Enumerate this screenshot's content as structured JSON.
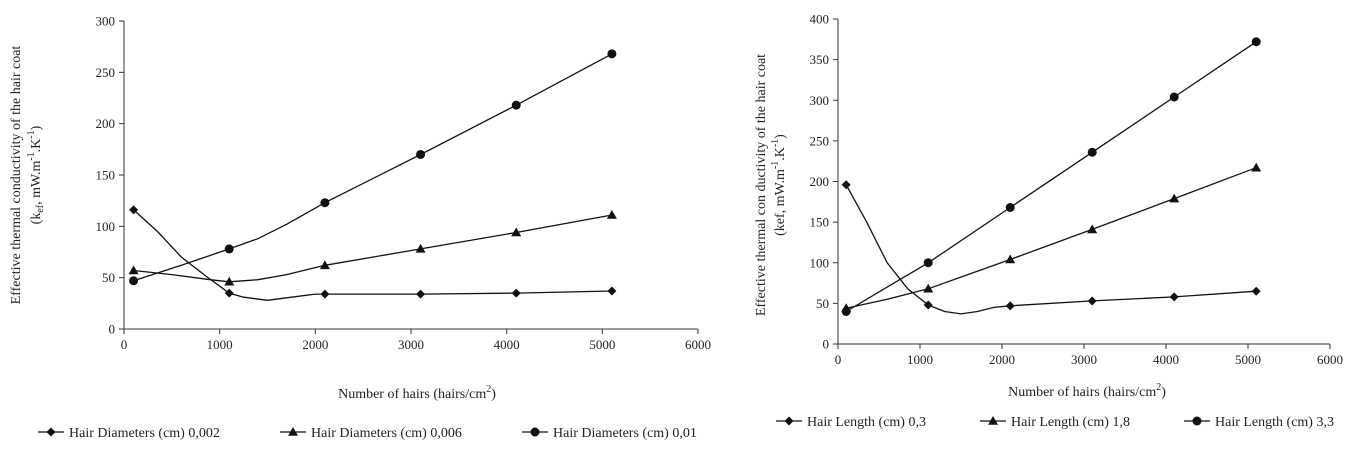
{
  "chart_data": [
    {
      "type": "line",
      "title": "",
      "xlabel": "Number of hairs (hairs/cm",
      "xlabel_sup": "2",
      "xlabel_end": ")",
      "ylabel_line1": "Effective thermal conductivity of the hair coat",
      "ylabel_line2_pre": "(k",
      "ylabel_line2_sub": "ef",
      "ylabel_line2_mid": ", mW.m",
      "ylabel_line2_sup1": "-1",
      "ylabel_line2_mid2": ".K",
      "ylabel_line2_sup2": "-1",
      "ylabel_line2_end": ")",
      "xlim": [
        0,
        6000
      ],
      "ylim": [
        0,
        300
      ],
      "xticks": [
        "0",
        "1000",
        "2000",
        "3000",
        "4000",
        "5000",
        "6000"
      ],
      "yticks": [
        "0",
        "50",
        "100",
        "150",
        "200",
        "250",
        "300"
      ],
      "legend_position": "bottom",
      "series": [
        {
          "name": "Hair Diameters (cm) 0,002",
          "marker": "diamond",
          "markers": [
            [
              100,
              116
            ],
            [
              1100,
              35
            ],
            [
              2100,
              34
            ],
            [
              3100,
              34
            ],
            [
              4100,
              35
            ],
            [
              5100,
              37
            ]
          ],
          "curve": [
            [
              100,
              116
            ],
            [
              350,
              95
            ],
            [
              600,
              70
            ],
            [
              850,
              52
            ],
            [
              1100,
              35
            ],
            [
              1250,
              31
            ],
            [
              1500,
              28
            ],
            [
              1750,
              31
            ],
            [
              2000,
              34
            ],
            [
              2100,
              34
            ],
            [
              3100,
              34
            ],
            [
              4100,
              35
            ],
            [
              5100,
              37
            ]
          ]
        },
        {
          "name": "Hair Diameters (cm) 0,006",
          "marker": "triangle",
          "markers": [
            [
              100,
              57
            ],
            [
              1100,
              46
            ],
            [
              2100,
              62
            ],
            [
              3100,
              78
            ],
            [
              4100,
              94
            ],
            [
              5100,
              111
            ]
          ],
          "curve": [
            [
              100,
              57
            ],
            [
              500,
              53
            ],
            [
              900,
              48
            ],
            [
              1100,
              46
            ],
            [
              1400,
              48
            ],
            [
              1700,
              53
            ],
            [
              2100,
              62
            ],
            [
              2600,
              70
            ],
            [
              3100,
              78
            ],
            [
              4100,
              94
            ],
            [
              5100,
              111
            ]
          ]
        },
        {
          "name": "Hair Diameters (cm) 0,01",
          "marker": "circle",
          "markers": [
            [
              100,
              47
            ],
            [
              1100,
              78
            ],
            [
              2100,
              123
            ],
            [
              3100,
              170
            ],
            [
              4100,
              218
            ],
            [
              5100,
              268
            ]
          ],
          "curve": [
            [
              100,
              47
            ],
            [
              600,
              62
            ],
            [
              1100,
              78
            ],
            [
              1400,
              88
            ],
            [
              1700,
              102
            ],
            [
              2100,
              123
            ],
            [
              3100,
              170
            ],
            [
              4100,
              218
            ],
            [
              5100,
              268
            ]
          ]
        }
      ]
    },
    {
      "type": "line",
      "title": "",
      "xlabel": "Number of hairs (hairs/cm",
      "xlabel_sup": "2",
      "xlabel_end": ")",
      "ylabel_line1": "Effective thermal con ductivity of the hair coat",
      "ylabel_line2_pre": "(kef, mW.m",
      "ylabel_line2_sub": "",
      "ylabel_line2_mid": "",
      "ylabel_line2_sup1": "-1",
      "ylabel_line2_mid2": ".K",
      "ylabel_line2_sup2": "-1",
      "ylabel_line2_end": ")",
      "xlim": [
        0,
        6000
      ],
      "ylim": [
        0,
        400
      ],
      "xticks": [
        "0",
        "1000",
        "2000",
        "3000",
        "4000",
        "5000",
        "6000"
      ],
      "yticks": [
        "0",
        "50",
        "100",
        "150",
        "200",
        "250",
        "300",
        "350",
        "400"
      ],
      "legend_position": "bottom",
      "series": [
        {
          "name": "Hair Length (cm) 0,3",
          "marker": "diamond",
          "markers": [
            [
              100,
              196
            ],
            [
              1100,
              48
            ],
            [
              2100,
              47
            ],
            [
              3100,
              53
            ],
            [
              4100,
              58
            ],
            [
              5100,
              65
            ]
          ],
          "curve": [
            [
              100,
              196
            ],
            [
              350,
              150
            ],
            [
              600,
              100
            ],
            [
              850,
              68
            ],
            [
              1100,
              48
            ],
            [
              1300,
              40
            ],
            [
              1500,
              37
            ],
            [
              1700,
              40
            ],
            [
              1900,
              45
            ],
            [
              2100,
              47
            ],
            [
              3100,
              53
            ],
            [
              4100,
              58
            ],
            [
              5100,
              65
            ]
          ]
        },
        {
          "name": "Hair Length (cm) 1,8",
          "marker": "triangle",
          "markers": [
            [
              100,
              44
            ],
            [
              1100,
              68
            ],
            [
              2100,
              104
            ],
            [
              3100,
              141
            ],
            [
              4100,
              179
            ],
            [
              5100,
              217
            ]
          ],
          "curve": [
            [
              100,
              44
            ],
            [
              600,
              55
            ],
            [
              1100,
              68
            ],
            [
              1600,
              86
            ],
            [
              2100,
              104
            ],
            [
              3100,
              141
            ],
            [
              4100,
              179
            ],
            [
              5100,
              217
            ]
          ]
        },
        {
          "name": "Hair Length (cm) 3,3",
          "marker": "circle",
          "markers": [
            [
              100,
              40
            ],
            [
              1100,
              100
            ],
            [
              2100,
              168
            ],
            [
              3100,
              236
            ],
            [
              4100,
              304
            ],
            [
              5100,
              372
            ]
          ],
          "curve": [
            [
              100,
              40
            ],
            [
              600,
              70
            ],
            [
              1100,
              100
            ],
            [
              2100,
              168
            ],
            [
              3100,
              236
            ],
            [
              4100,
              304
            ],
            [
              5100,
              372
            ]
          ]
        }
      ]
    }
  ]
}
